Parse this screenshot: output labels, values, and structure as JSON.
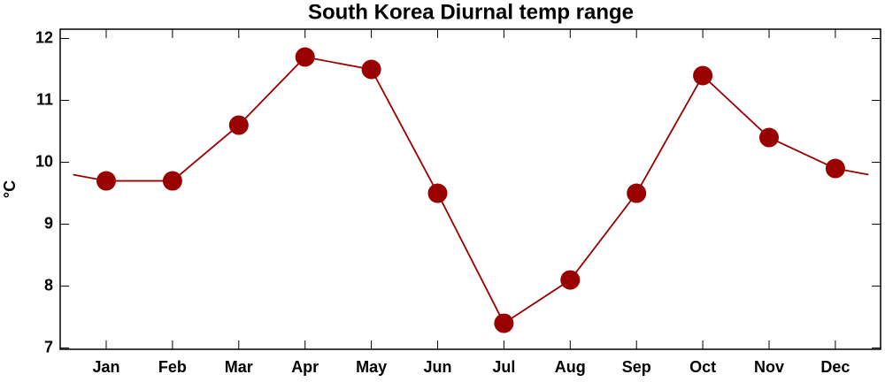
{
  "chart_data": {
    "type": "line",
    "title": "South Korea Diurnal temp range",
    "y_label": "°C",
    "categories": [
      "Jan",
      "Feb",
      "Mar",
      "Apr",
      "May",
      "Jun",
      "Jul",
      "Aug",
      "Sep",
      "Oct",
      "Nov",
      "Dec"
    ],
    "series": [
      {
        "name": "Diurnal temp range",
        "color": "#990000",
        "values": [
          9.7,
          9.7,
          10.6,
          11.7,
          11.5,
          9.5,
          7.4,
          8.1,
          9.5,
          11.4,
          10.4,
          9.9
        ]
      }
    ],
    "ylim": [
      6.98,
      12.15
    ],
    "yticks": [
      7,
      8,
      9,
      10,
      11,
      12
    ]
  }
}
